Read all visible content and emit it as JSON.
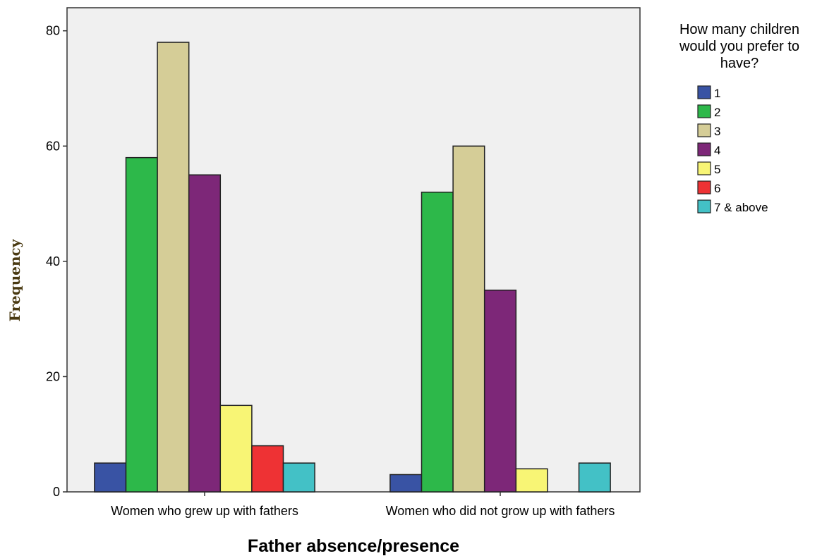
{
  "chart_data": {
    "type": "bar",
    "title": "",
    "xlabel": "Father absence/presence",
    "ylabel": "Frequency",
    "categories": [
      "Women who grew up with fathers",
      "Women who did not grow up with fathers"
    ],
    "series": [
      {
        "name": "1",
        "color": "#3953A4",
        "values": [
          5,
          3
        ]
      },
      {
        "name": "2",
        "color": "#2DB84A",
        "values": [
          58,
          52
        ]
      },
      {
        "name": "3",
        "color": "#D5CD97",
        "values": [
          78,
          60
        ]
      },
      {
        "name": "4",
        "color": "#7D2778",
        "values": [
          55,
          35
        ]
      },
      {
        "name": "5",
        "color": "#F8F575",
        "values": [
          15,
          4
        ]
      },
      {
        "name": "6",
        "color": "#EE3234",
        "values": [
          8,
          0
        ]
      },
      {
        "name": "7 & above",
        "color": "#43C1C6",
        "values": [
          5,
          5
        ]
      }
    ],
    "ylim": [
      0,
      84
    ],
    "yticks": [
      0,
      20,
      40,
      60,
      80
    ],
    "ytick_labels": [
      "0",
      "20",
      "40",
      "60",
      "80"
    ],
    "grid": false,
    "plot_background": "#F0F0F0",
    "legend": {
      "title_lines": [
        "How many children",
        "would you prefer to",
        "have?"
      ],
      "position": "top-right, outside plot"
    }
  }
}
